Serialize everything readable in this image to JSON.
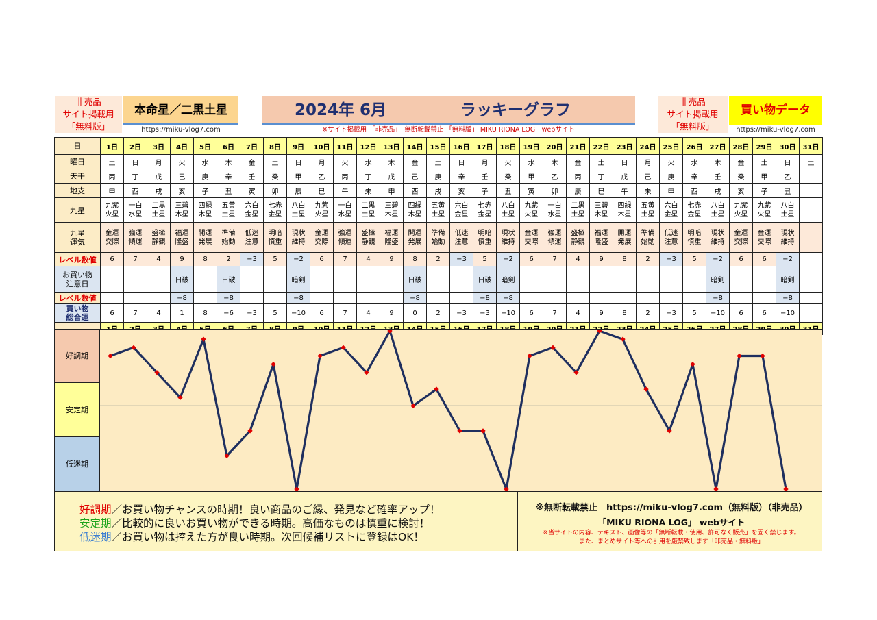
{
  "header": {
    "left_notice": [
      "非売品",
      "サイト掲載用",
      "「無料版」"
    ],
    "honmei_title": "本命星／二黒土星",
    "url_left": "https://miku-vlog7.com",
    "year_month": "2024年 6月",
    "graph_title": "ラッキーグラフ",
    "top_notice": "※サイト掲載用 「非売品」　無断転載禁止 「無料版」 MIKU RIONA LOG　webサイト",
    "right_notice": [
      "非売品",
      "サイト掲載用",
      "「無料版」"
    ],
    "kaimono_title": "買い物データ",
    "url_right": "https://miku-vlog7.com"
  },
  "row_labels": {
    "day": "日",
    "weekday": "曜日",
    "tenkan": "天干",
    "chishi": "地支",
    "kyusei": "九星",
    "unki": [
      "九星",
      "運気"
    ],
    "level": "レベル数値",
    "caution": [
      "お買い物",
      "注意日"
    ],
    "level2": "レベル数値",
    "total": [
      "買い物",
      "総合運"
    ]
  },
  "days": [
    "1日",
    "2日",
    "3日",
    "4日",
    "5日",
    "6日",
    "7日",
    "8日",
    "9日",
    "10日",
    "11日",
    "12日",
    "13日",
    "14日",
    "15日",
    "16日",
    "17日",
    "18日",
    "19日",
    "20日",
    "21日",
    "22日",
    "23日",
    "24日",
    "25日",
    "26日",
    "27日",
    "28日",
    "29日",
    "30日",
    "31日"
  ],
  "weekdays": [
    "土",
    "日",
    "月",
    "火",
    "水",
    "木",
    "金",
    "土",
    "日",
    "月",
    "火",
    "水",
    "木",
    "金",
    "土",
    "日",
    "月",
    "火",
    "水",
    "木",
    "金",
    "土",
    "日",
    "月",
    "火",
    "水",
    "木",
    "金",
    "土",
    "日",
    "土"
  ],
  "sunday_days": [
    2,
    9,
    16,
    23,
    30
  ],
  "tenkan": [
    "丙",
    "丁",
    "戊",
    "己",
    "庚",
    "辛",
    "壬",
    "癸",
    "甲",
    "乙",
    "丙",
    "丁",
    "戊",
    "己",
    "庚",
    "辛",
    "壬",
    "癸",
    "甲",
    "乙",
    "丙",
    "丁",
    "戊",
    "己",
    "庚",
    "辛",
    "壬",
    "癸",
    "甲",
    "乙",
    ""
  ],
  "chishi": [
    "申",
    "酉",
    "戌",
    "亥",
    "子",
    "丑",
    "寅",
    "卯",
    "辰",
    "巳",
    "午",
    "未",
    "申",
    "酉",
    "戌",
    "亥",
    "子",
    "丑",
    "寅",
    "卯",
    "辰",
    "巳",
    "午",
    "未",
    "申",
    "酉",
    "戌",
    "亥",
    "子",
    "丑",
    ""
  ],
  "kyusei": [
    [
      "九紫",
      "火星"
    ],
    [
      "一白",
      "水星"
    ],
    [
      "二黒",
      "土星"
    ],
    [
      "三碧",
      "木星"
    ],
    [
      "四緑",
      "木星"
    ],
    [
      "五黄",
      "土星"
    ],
    [
      "六白",
      "金星"
    ],
    [
      "七赤",
      "金星"
    ],
    [
      "八白",
      "土星"
    ],
    [
      "九紫",
      "火星"
    ],
    [
      "一白",
      "水星"
    ],
    [
      "二黒",
      "土星"
    ],
    [
      "三碧",
      "木星"
    ],
    [
      "四緑",
      "木星"
    ],
    [
      "五黄",
      "土星"
    ],
    [
      "六白",
      "金星"
    ],
    [
      "七赤",
      "金星"
    ],
    [
      "八白",
      "土星"
    ],
    [
      "九紫",
      "火星"
    ],
    [
      "一白",
      "水星"
    ],
    [
      "二黒",
      "土星"
    ],
    [
      "三碧",
      "木星"
    ],
    [
      "四緑",
      "木星"
    ],
    [
      "五黄",
      "土星"
    ],
    [
      "六白",
      "金星"
    ],
    [
      "七赤",
      "金星"
    ],
    [
      "八白",
      "土星"
    ],
    [
      "九紫",
      "火星"
    ],
    [
      "九紫",
      "火星"
    ],
    [
      "八白",
      "土星"
    ],
    [
      "",
      ""
    ]
  ],
  "unki": [
    [
      "金運",
      "交際"
    ],
    [
      "強運",
      "傾運"
    ],
    [
      "盛極",
      "静観"
    ],
    [
      "福運",
      "隆盛"
    ],
    [
      "開運",
      "発展"
    ],
    [
      "準備",
      "始動"
    ],
    [
      "低迷",
      "注意"
    ],
    [
      "明暗",
      "慎重"
    ],
    [
      "現状",
      "維持"
    ],
    [
      "金運",
      "交際"
    ],
    [
      "強運",
      "傾運"
    ],
    [
      "盛極",
      "静観"
    ],
    [
      "福運",
      "隆盛"
    ],
    [
      "開運",
      "発展"
    ],
    [
      "準備",
      "始動"
    ],
    [
      "低迷",
      "注意"
    ],
    [
      "明暗",
      "慎重"
    ],
    [
      "現状",
      "維持"
    ],
    [
      "金運",
      "交際"
    ],
    [
      "強運",
      "傾運"
    ],
    [
      "盛極",
      "静観"
    ],
    [
      "福運",
      "隆盛"
    ],
    [
      "開運",
      "発展"
    ],
    [
      "準備",
      "始動"
    ],
    [
      "低迷",
      "注意"
    ],
    [
      "明暗",
      "慎重"
    ],
    [
      "現状",
      "維持"
    ],
    [
      "金運",
      "交際"
    ],
    [
      "金運",
      "交際"
    ],
    [
      "現状",
      "維持"
    ],
    [
      "",
      ""
    ]
  ],
  "levels": [
    "6",
    "7",
    "4",
    "9",
    "8",
    "2",
    "−3",
    "5",
    "−2",
    "6",
    "7",
    "4",
    "9",
    "8",
    "2",
    "−3",
    "5",
    "−2",
    "6",
    "7",
    "4",
    "9",
    "8",
    "2",
    "−3",
    "5",
    "−2",
    "6",
    "6",
    "−2",
    ""
  ],
  "caution": [
    "",
    "",
    "",
    "日破",
    "",
    "日破",
    "",
    "",
    "暗剣",
    "",
    "",
    "",
    "",
    "日破",
    "",
    "",
    "日破",
    "暗剣",
    "",
    "",
    "",
    "",
    "",
    "",
    "",
    "",
    "暗剣",
    "",
    "",
    "暗剣",
    ""
  ],
  "levels2": [
    "",
    "",
    "",
    "−8",
    "",
    "−8",
    "",
    "",
    "−8",
    "",
    "",
    "",
    "",
    "−8",
    "",
    "",
    "−8",
    "−8",
    "",
    "",
    "",
    "",
    "",
    "",
    "",
    "",
    "−8",
    "",
    "",
    "−8",
    ""
  ],
  "totals": [
    "6",
    "7",
    "4",
    "1",
    "8",
    "−6",
    "−3",
    "5",
    "−10",
    "6",
    "7",
    "4",
    "9",
    "0",
    "2",
    "−3",
    "−3",
    "−10",
    "6",
    "7",
    "4",
    "9",
    "8",
    "2",
    "−3",
    "5",
    "−10",
    "6",
    "6",
    "−10",
    ""
  ],
  "bands": {
    "good": "好調期",
    "stable": "安定期",
    "low": "低迷期"
  },
  "colors": {
    "line": "#1f2f5f",
    "marker": "#e00000",
    "good_band": "#f5c9ae",
    "stable_band": "#ffff99",
    "low_band": "#b8d1e8"
  },
  "chart_data": {
    "type": "line",
    "x": [
      "1日",
      "2日",
      "3日",
      "4日",
      "5日",
      "6日",
      "7日",
      "8日",
      "9日",
      "10日",
      "11日",
      "12日",
      "13日",
      "14日",
      "15日",
      "16日",
      "17日",
      "18日",
      "19日",
      "20日",
      "21日",
      "22日",
      "23日",
      "24日",
      "25日",
      "26日",
      "27日",
      "28日",
      "29日",
      "30日"
    ],
    "values": [
      6,
      7,
      4,
      1,
      8,
      -6,
      -3,
      5,
      -10,
      6,
      7,
      4,
      9,
      0,
      2,
      -3,
      -3,
      -10,
      6,
      7,
      4,
      9,
      8,
      2,
      -3,
      5,
      -10,
      6,
      6,
      -10
    ],
    "ylim": [
      -10,
      9
    ],
    "grid": false
  },
  "footer": {
    "good_term": "好調期",
    "good_text": "／お買い物チャンスの時期！良い商品のご縁、発見など確率アップ！",
    "stable_term": "安定期",
    "stable_text": "／比較的に良いお買い物ができる時期。高価なものは慎重に検討！",
    "low_term": "低迷期",
    "low_text": "／お買い物は控えた方が良い時期。次回候補リストに登録はOK！",
    "right_line1": "※無断転載禁止　https://miku-vlog7.com（無料版）（非売品）",
    "right_line2": "「MIKU RIONA LOG」 webサイト",
    "right_line3": "※当サイトの内容、テキスト、画像等の「無断転載・使用、許可なく販売」を固く禁じます。",
    "right_line4": "また、まとめサイト等への引用を厳禁致します「非売品・無料版」"
  }
}
